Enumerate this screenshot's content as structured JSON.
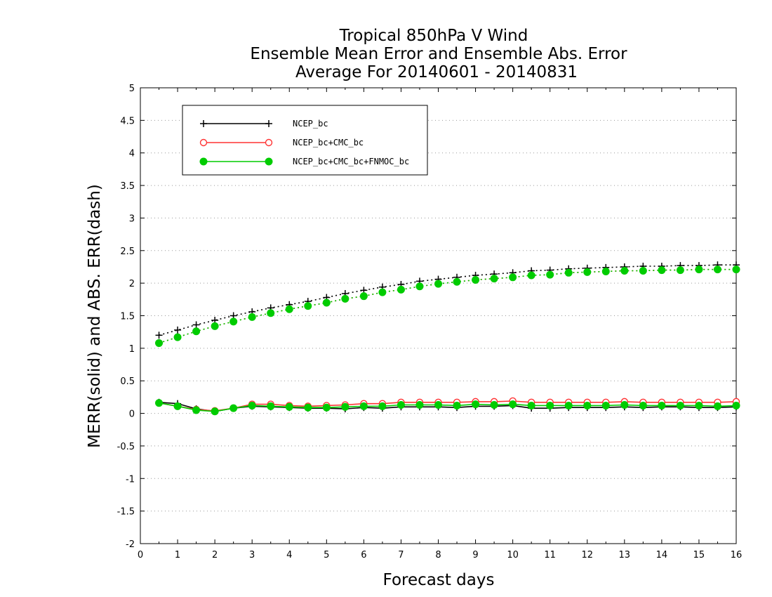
{
  "chart_data": {
    "type": "line",
    "title_lines": [
      "Tropical 850hPa V Wind",
      "Ensemble Mean Error and Ensemble Abs. Error",
      "Average For 20140601 - 20140831"
    ],
    "xlabel": "Forecast days",
    "ylabel": "MERR(solid) and ABS. ERR(dash)",
    "xlim": [
      0,
      16
    ],
    "ylim": [
      -2,
      5
    ],
    "x_ticks": [
      "0",
      "1",
      "2",
      "3",
      "4",
      "5",
      "6",
      "7",
      "8",
      "9",
      "10",
      "11",
      "12",
      "13",
      "14",
      "15",
      "16"
    ],
    "y_ticks": [
      "5",
      "4.5",
      "4",
      "3.5",
      "3",
      "2.5",
      "2",
      "1.5",
      "1",
      "0.5",
      "0",
      "-0.5",
      "-1",
      "-1.5",
      "-2"
    ],
    "grid": "horizontal dotted",
    "legend_position": "top-left",
    "x": [
      0.5,
      1,
      1.5,
      2,
      2.5,
      3,
      3.5,
      4,
      4.5,
      5,
      5.5,
      6,
      6.5,
      7,
      7.5,
      8,
      8.5,
      9,
      9.5,
      10,
      10.5,
      11,
      11.5,
      12,
      12.5,
      13,
      13.5,
      14,
      14.5,
      15,
      15.5,
      16
    ],
    "series": [
      {
        "name": "NCEP_bc",
        "color": "#000000",
        "marker": "plus",
        "merr": [
          0.17,
          0.15,
          0.07,
          0.03,
          0.08,
          0.11,
          0.1,
          0.09,
          0.08,
          0.08,
          0.07,
          0.09,
          0.08,
          0.1,
          0.1,
          0.1,
          0.09,
          0.11,
          0.11,
          0.12,
          0.08,
          0.08,
          0.09,
          0.09,
          0.09,
          0.1,
          0.09,
          0.1,
          0.1,
          0.09,
          0.09,
          0.1
        ],
        "abs_err": [
          1.2,
          1.28,
          1.36,
          1.43,
          1.5,
          1.56,
          1.62,
          1.67,
          1.72,
          1.78,
          1.84,
          1.89,
          1.94,
          1.98,
          2.03,
          2.06,
          2.09,
          2.12,
          2.14,
          2.16,
          2.19,
          2.2,
          2.22,
          2.23,
          2.24,
          2.25,
          2.26,
          2.26,
          2.27,
          2.27,
          2.28,
          2.28
        ]
      },
      {
        "name": "NCEP_bc+CMC_bc",
        "color": "#ff3333",
        "marker": "open-circle",
        "merr": [
          0.16,
          0.11,
          0.06,
          0.04,
          0.08,
          0.14,
          0.14,
          0.12,
          0.11,
          0.12,
          0.13,
          0.15,
          0.15,
          0.17,
          0.17,
          0.17,
          0.17,
          0.18,
          0.18,
          0.19,
          0.17,
          0.17,
          0.17,
          0.17,
          0.17,
          0.18,
          0.17,
          0.17,
          0.17,
          0.17,
          0.17,
          0.18
        ],
        "abs_err": [
          1.08,
          1.17,
          1.26,
          1.34,
          1.41,
          1.48,
          1.54,
          1.6,
          1.65,
          1.7,
          1.76,
          1.8,
          1.86,
          1.9,
          1.95,
          1.99,
          2.02,
          2.05,
          2.07,
          2.09,
          2.12,
          2.13,
          2.16,
          2.17,
          2.18,
          2.19,
          2.19,
          2.2,
          2.2,
          2.21,
          2.21,
          2.21
        ]
      },
      {
        "name": "NCEP_bc+CMC_bc+FNMOC_bc",
        "color": "#00cc00",
        "marker": "filled-circle",
        "merr": [
          0.16,
          0.11,
          0.05,
          0.03,
          0.08,
          0.12,
          0.11,
          0.1,
          0.09,
          0.09,
          0.1,
          0.11,
          0.11,
          0.13,
          0.13,
          0.13,
          0.12,
          0.14,
          0.13,
          0.14,
          0.12,
          0.12,
          0.12,
          0.12,
          0.12,
          0.13,
          0.12,
          0.12,
          0.12,
          0.12,
          0.11,
          0.12
        ],
        "abs_err": [
          1.08,
          1.17,
          1.26,
          1.34,
          1.41,
          1.48,
          1.54,
          1.6,
          1.65,
          1.7,
          1.76,
          1.8,
          1.86,
          1.9,
          1.95,
          1.99,
          2.02,
          2.05,
          2.07,
          2.09,
          2.12,
          2.13,
          2.16,
          2.17,
          2.18,
          2.19,
          2.19,
          2.2,
          2.2,
          2.21,
          2.21,
          2.21
        ]
      }
    ]
  }
}
